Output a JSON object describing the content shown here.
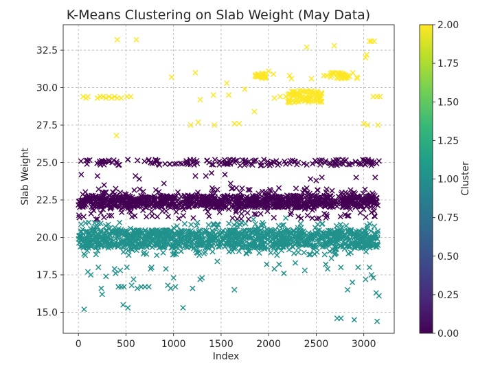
{
  "chart_data": {
    "type": "scatter",
    "title": "K-Means Clustering on Slab Weight (May Data)",
    "xlabel": "Index",
    "ylabel": "Slab Weight",
    "xlim": [
      -160,
      3320
    ],
    "ylim": [
      13.6,
      34.2
    ],
    "xticks": [
      "0",
      "500",
      "1000",
      "1500",
      "2000",
      "2500",
      "3000"
    ],
    "xtick_values": [
      0,
      500,
      1000,
      1500,
      2000,
      2500,
      3000
    ],
    "yticks": [
      "15.0",
      "17.5",
      "20.0",
      "22.5",
      "25.0",
      "27.5",
      "30.0",
      "32.5"
    ],
    "ytick_values": [
      15.0,
      17.5,
      20.0,
      22.5,
      25.0,
      27.5,
      30.0,
      32.5
    ],
    "grid": true,
    "marker": "x",
    "colorbar": {
      "label": "Cluster",
      "colormap": "viridis",
      "range": [
        0,
        2
      ],
      "ticks": [
        "0.00",
        "0.25",
        "0.50",
        "0.75",
        "1.00",
        "1.25",
        "1.50",
        "1.75",
        "2.00"
      ],
      "tick_values": [
        0,
        0.25,
        0.5,
        0.75,
        1.0,
        1.25,
        1.5,
        1.75,
        2.0
      ]
    },
    "series": [
      {
        "cluster": 0,
        "color": "#440154",
        "bands": [
          {
            "x_range": [
              0,
              3150
            ],
            "y_min": 22.0,
            "y_max": 22.8,
            "count": 900
          },
          {
            "x_range": [
              0,
              3150
            ],
            "y_min": 21.2,
            "y_max": 23.3,
            "count": 250
          },
          {
            "x_range": [
              0,
              3150
            ],
            "y_min": 24.8,
            "y_max": 25.2,
            "count": 160
          }
        ],
        "points": [
          [
            30,
            24.2
          ],
          [
            90,
            24.9
          ],
          [
            200,
            24.1
          ],
          [
            270,
            23.5
          ],
          [
            520,
            25.2
          ],
          [
            600,
            24.1
          ],
          [
            640,
            23.9
          ],
          [
            900,
            23.6
          ],
          [
            960,
            24.9
          ],
          [
            1150,
            25.0
          ],
          [
            1230,
            24.1
          ],
          [
            1340,
            24.1
          ],
          [
            1400,
            24.3
          ],
          [
            1500,
            25.0
          ],
          [
            1540,
            24.2
          ],
          [
            1600,
            23.6
          ],
          [
            1700,
            24.8
          ],
          [
            1820,
            24.9
          ],
          [
            1950,
            25.2
          ],
          [
            2080,
            25.1
          ],
          [
            2180,
            24.9
          ],
          [
            2310,
            25.0
          ],
          [
            2440,
            23.9
          ],
          [
            2500,
            23.8
          ],
          [
            2560,
            24.0
          ],
          [
            2680,
            25.1
          ],
          [
            2800,
            25.1
          ],
          [
            2920,
            24.0
          ],
          [
            3050,
            25.1
          ],
          [
            3120,
            24.0
          ],
          [
            3160,
            25.1
          ],
          [
            1660,
            23.3
          ],
          [
            2020,
            23.1
          ],
          [
            2380,
            23.2
          ],
          [
            2770,
            23.0
          ],
          [
            440,
            23.0
          ],
          [
            160,
            21.8
          ]
        ]
      },
      {
        "cluster": 1,
        "color": "#21918c",
        "bands": [
          {
            "x_range": [
              0,
              3150
            ],
            "y_min": 19.3,
            "y_max": 20.5,
            "count": 1000
          },
          {
            "x_range": [
              0,
              3150
            ],
            "y_min": 18.8,
            "y_max": 21.0,
            "count": 300
          }
        ],
        "points": [
          [
            60,
            15.2
          ],
          [
            100,
            17.7
          ],
          [
            130,
            17.5
          ],
          [
            210,
            18.0
          ],
          [
            240,
            16.6
          ],
          [
            250,
            16.2
          ],
          [
            290,
            17.4
          ],
          [
            380,
            17.9
          ],
          [
            390,
            17.6
          ],
          [
            420,
            16.7
          ],
          [
            440,
            17.8
          ],
          [
            470,
            15.5
          ],
          [
            520,
            15.3
          ],
          [
            510,
            18.0
          ],
          [
            450,
            16.7
          ],
          [
            480,
            16.7
          ],
          [
            560,
            16.8
          ],
          [
            580,
            17.2
          ],
          [
            620,
            16.6
          ],
          [
            660,
            16.7
          ],
          [
            700,
            16.7
          ],
          [
            740,
            16.7
          ],
          [
            760,
            17.9
          ],
          [
            770,
            18.0
          ],
          [
            920,
            17.9
          ],
          [
            940,
            16.8
          ],
          [
            970,
            16.6
          ],
          [
            1000,
            17.3
          ],
          [
            1020,
            16.7
          ],
          [
            1100,
            15.3
          ],
          [
            1200,
            16.6
          ],
          [
            1280,
            17.2
          ],
          [
            1300,
            17.3
          ],
          [
            1460,
            18.4
          ],
          [
            1640,
            16.5
          ],
          [
            1980,
            18.2
          ],
          [
            2060,
            17.9
          ],
          [
            2110,
            18.2
          ],
          [
            2160,
            17.6
          ],
          [
            2280,
            18.3
          ],
          [
            2380,
            17.8
          ],
          [
            2600,
            18.2
          ],
          [
            2620,
            17.9
          ],
          [
            2660,
            18.6
          ],
          [
            2720,
            14.6
          ],
          [
            2760,
            14.6
          ],
          [
            2900,
            14.5
          ],
          [
            2760,
            18.0
          ],
          [
            2830,
            16.5
          ],
          [
            2880,
            17.0
          ],
          [
            2940,
            18.0
          ],
          [
            3020,
            17.2
          ],
          [
            3080,
            17.5
          ],
          [
            3100,
            17.3
          ],
          [
            3130,
            16.3
          ],
          [
            3160,
            16.1
          ],
          [
            3140,
            14.4
          ],
          [
            3060,
            18.0
          ],
          [
            2180,
            21.3
          ],
          [
            2560,
            20.9
          ],
          [
            1840,
            21.2
          ]
        ]
      },
      {
        "cluster": 2,
        "color": "#fde725",
        "bands": [
          {
            "x_range": [
              2200,
              2560
            ],
            "y_min": 29.0,
            "y_max": 29.8,
            "count": 90
          },
          {
            "x_range": [
              1850,
              1970
            ],
            "y_min": 30.6,
            "y_max": 31.0,
            "count": 22
          },
          {
            "x_range": [
              2650,
              2940
            ],
            "y_min": 30.6,
            "y_max": 31.0,
            "count": 35
          }
        ],
        "points": [
          [
            50,
            29.4
          ],
          [
            80,
            29.3
          ],
          [
            100,
            29.4
          ],
          [
            200,
            29.3
          ],
          [
            230,
            29.4
          ],
          [
            260,
            29.4
          ],
          [
            290,
            29.3
          ],
          [
            320,
            29.4
          ],
          [
            350,
            29.3
          ],
          [
            380,
            29.4
          ],
          [
            410,
            29.3
          ],
          [
            450,
            29.3
          ],
          [
            510,
            29.4
          ],
          [
            550,
            29.4
          ],
          [
            410,
            33.2
          ],
          [
            610,
            33.2
          ],
          [
            400,
            26.8
          ],
          [
            980,
            30.7
          ],
          [
            1180,
            27.5
          ],
          [
            1230,
            31.0
          ],
          [
            1260,
            27.7
          ],
          [
            1280,
            29.2
          ],
          [
            1420,
            29.5
          ],
          [
            1430,
            27.5
          ],
          [
            1560,
            30.3
          ],
          [
            1580,
            29.5
          ],
          [
            1640,
            27.6
          ],
          [
            1690,
            27.6
          ],
          [
            1750,
            29.9
          ],
          [
            1850,
            28.4
          ],
          [
            2000,
            31.1
          ],
          [
            2060,
            29.3
          ],
          [
            2120,
            29.4
          ],
          [
            2180,
            29.4
          ],
          [
            2220,
            30.8
          ],
          [
            2240,
            30.6
          ],
          [
            2290,
            29.5
          ],
          [
            2400,
            32.7
          ],
          [
            2450,
            30.6
          ],
          [
            2560,
            29.6
          ],
          [
            2580,
            30.8
          ],
          [
            2610,
            30.8
          ],
          [
            2690,
            32.8
          ],
          [
            3000,
            27.6
          ],
          [
            3040,
            27.5
          ],
          [
            3020,
            32.0
          ],
          [
            3030,
            32.2
          ],
          [
            3060,
            33.1
          ],
          [
            3080,
            33.1
          ],
          [
            3110,
            33.1
          ],
          [
            3140,
            29.4
          ],
          [
            3170,
            29.4
          ],
          [
            3150,
            27.5
          ],
          [
            3100,
            29.4
          ],
          [
            2050,
            30.9
          ]
        ]
      }
    ]
  }
}
